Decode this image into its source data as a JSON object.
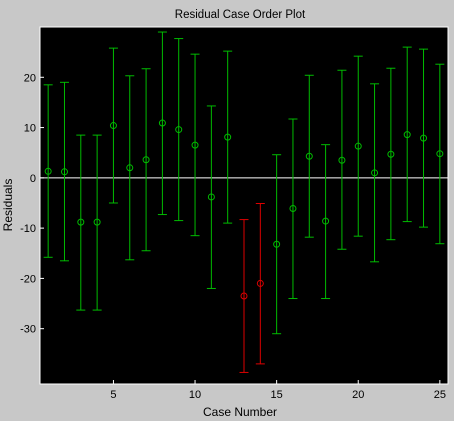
{
  "chart_data": {
    "type": "scatter",
    "title": "Residual Case Order Plot",
    "xlabel": "Case Number",
    "ylabel": "Residuals",
    "xlim": [
      0.5,
      25.5
    ],
    "ylim": [
      -41,
      30
    ],
    "xticks": [
      5,
      10,
      15,
      20,
      25
    ],
    "yticks": [
      -30,
      -20,
      -10,
      0,
      10,
      20
    ],
    "grid": false,
    "background": "#000000",
    "colors": {
      "inlier": "#00bb00",
      "outlier": "#dd0000",
      "zero_line": "#ffffff"
    },
    "points": [
      {
        "case": 1,
        "residual": 1.3,
        "lower": -15.8,
        "upper": 18.5,
        "outlier": false
      },
      {
        "case": 2,
        "residual": 1.2,
        "lower": -16.5,
        "upper": 19.0,
        "outlier": false
      },
      {
        "case": 3,
        "residual": -8.8,
        "lower": -26.3,
        "upper": 8.5,
        "outlier": false
      },
      {
        "case": 4,
        "residual": -8.8,
        "lower": -26.3,
        "upper": 8.5,
        "outlier": false
      },
      {
        "case": 5,
        "residual": 10.4,
        "lower": -5.0,
        "upper": 25.8,
        "outlier": false
      },
      {
        "case": 6,
        "residual": 2.0,
        "lower": -16.3,
        "upper": 20.3,
        "outlier": false
      },
      {
        "case": 7,
        "residual": 3.6,
        "lower": -14.5,
        "upper": 21.7,
        "outlier": false
      },
      {
        "case": 8,
        "residual": 10.9,
        "lower": -7.3,
        "upper": 29.0,
        "outlier": false
      },
      {
        "case": 9,
        "residual": 9.6,
        "lower": -8.5,
        "upper": 27.7,
        "outlier": false
      },
      {
        "case": 10,
        "residual": 6.5,
        "lower": -11.5,
        "upper": 24.6,
        "outlier": false
      },
      {
        "case": 11,
        "residual": -3.8,
        "lower": -22.0,
        "upper": 14.3,
        "outlier": false
      },
      {
        "case": 12,
        "residual": 8.1,
        "lower": -9.0,
        "upper": 25.2,
        "outlier": false
      },
      {
        "case": 13,
        "residual": -23.5,
        "lower": -38.7,
        "upper": -8.3,
        "outlier": true
      },
      {
        "case": 14,
        "residual": -21.0,
        "lower": -37.0,
        "upper": -5.1,
        "outlier": true
      },
      {
        "case": 15,
        "residual": -13.2,
        "lower": -31.0,
        "upper": 4.6,
        "outlier": false
      },
      {
        "case": 16,
        "residual": -6.1,
        "lower": -24.0,
        "upper": 11.7,
        "outlier": false
      },
      {
        "case": 17,
        "residual": 4.3,
        "lower": -11.8,
        "upper": 20.4,
        "outlier": false
      },
      {
        "case": 18,
        "residual": -8.6,
        "lower": -24.0,
        "upper": 6.6,
        "outlier": false
      },
      {
        "case": 19,
        "residual": 3.5,
        "lower": -14.2,
        "upper": 21.4,
        "outlier": false
      },
      {
        "case": 20,
        "residual": 6.3,
        "lower": -11.6,
        "upper": 24.2,
        "outlier": false
      },
      {
        "case": 21,
        "residual": 1.0,
        "lower": -16.7,
        "upper": 18.7,
        "outlier": false
      },
      {
        "case": 22,
        "residual": 4.7,
        "lower": -12.3,
        "upper": 21.8,
        "outlier": false
      },
      {
        "case": 23,
        "residual": 8.6,
        "lower": -8.7,
        "upper": 26.0,
        "outlier": false
      },
      {
        "case": 24,
        "residual": 7.9,
        "lower": -9.8,
        "upper": 25.6,
        "outlier": false
      },
      {
        "case": 25,
        "residual": 4.8,
        "lower": -13.1,
        "upper": 22.6,
        "outlier": false
      }
    ]
  }
}
